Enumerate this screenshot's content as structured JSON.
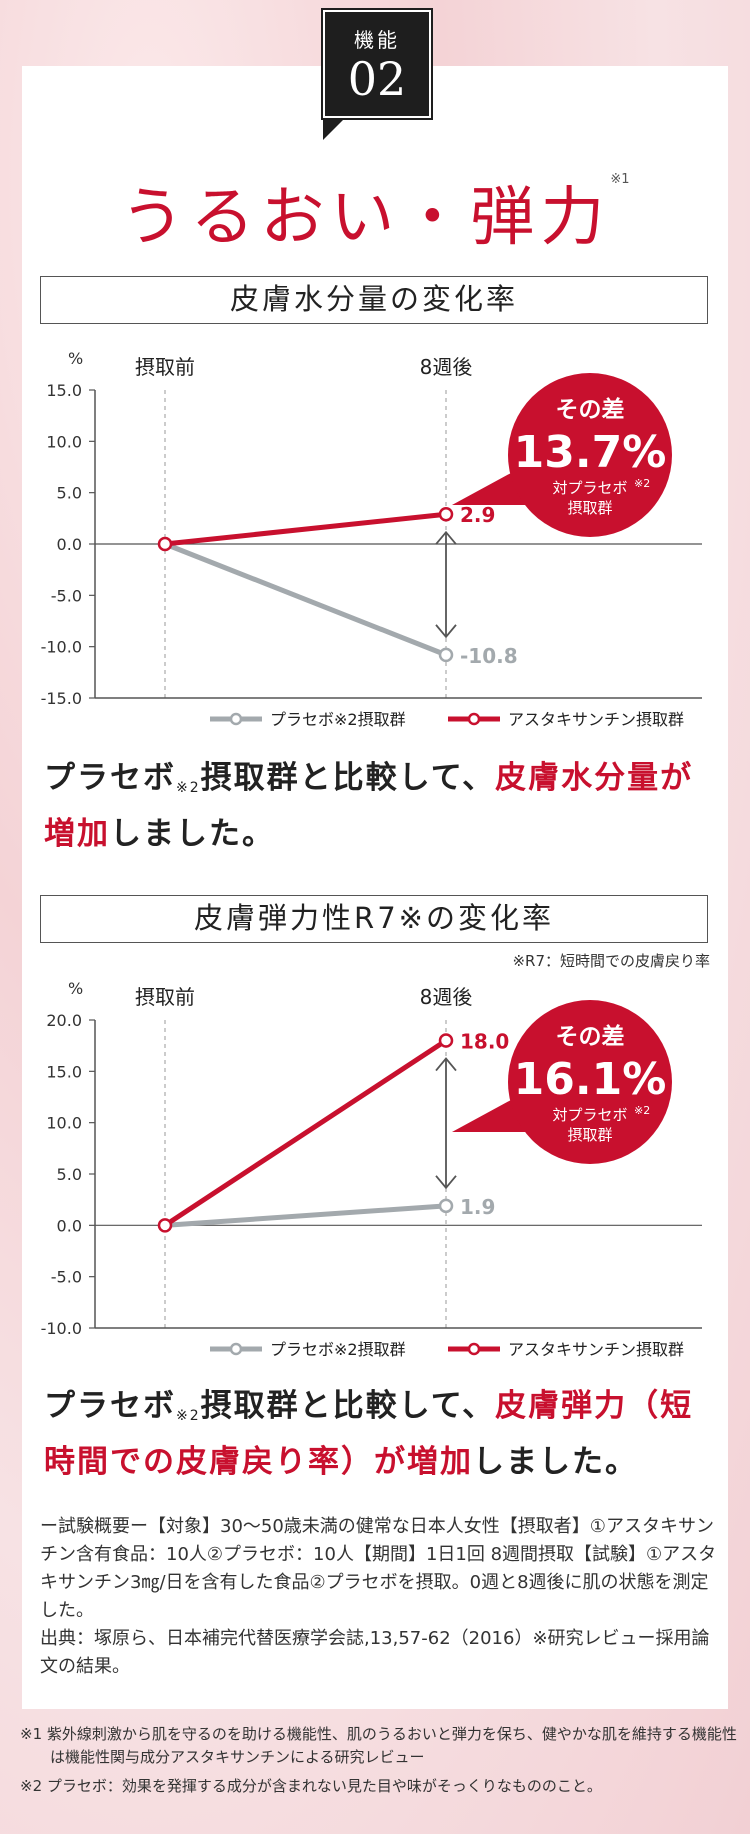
{
  "badge": {
    "label": "機能",
    "number": "02"
  },
  "title": {
    "text": "うるおい・弾力",
    "note": "※1"
  },
  "chart_data": [
    {
      "type": "line",
      "title": "皮膚水分量の変化率",
      "ylabel": "%",
      "categories": [
        "摂取前",
        "8週後"
      ],
      "yticks": [
        "15.0",
        "10.0",
        "5.0",
        "0.0",
        "-5.0",
        "-10.0",
        "-15.0"
      ],
      "ylim": [
        -15,
        15
      ],
      "series": [
        {
          "name": "プラセボ※2摂取群",
          "values": [
            0,
            -10.8
          ],
          "color": "#a3a9ad",
          "end_label": "-10.8"
        },
        {
          "name": "アスタキサンチン摂取群",
          "values": [
            0,
            2.9
          ],
          "color": "#c8102e",
          "end_label": "2.9"
        }
      ],
      "annotation": {
        "top": "その差",
        "value": "13.7%",
        "sub1": "対プラセボ",
        "sub_note": "※2",
        "sub2": "摂取群"
      }
    },
    {
      "type": "line",
      "title": "皮膚弾力性R7※の変化率",
      "ylabel": "%",
      "categories": [
        "摂取前",
        "8週後"
      ],
      "yticks": [
        "20.0",
        "15.0",
        "10.0",
        "5.0",
        "0.0",
        "-5.0",
        "-10.0"
      ],
      "ylim": [
        -10,
        20
      ],
      "series": [
        {
          "name": "プラセボ※2摂取群",
          "values": [
            0,
            1.9
          ],
          "color": "#a3a9ad",
          "end_label": "1.9"
        },
        {
          "name": "アスタキサンチン摂取群",
          "values": [
            0,
            18.0
          ],
          "color": "#c8102e",
          "end_label": "18.0"
        }
      ],
      "annotation": {
        "top": "その差",
        "value": "16.1%",
        "sub1": "対プラセボ",
        "sub_note": "※2",
        "sub2": "摂取群"
      }
    }
  ],
  "section1": {
    "heading": "皮膚水分量の変化率",
    "lead_pre": "プラセボ",
    "lead_note": "※2",
    "lead_mid": "摂取群と比較して、",
    "lead_hl": "皮膚水分量が増加",
    "lead_post": "しました。"
  },
  "section2": {
    "heading": "皮膚弾力性R7※の変化率",
    "r7_note": "※R7：短時間での皮膚戻り率",
    "lead_pre": "プラセボ",
    "lead_note": "※2",
    "lead_mid": "摂取群と比較して、",
    "lead_hl": "皮膚弾力（短時間での皮膚戻り率）が増加",
    "lead_post": "しました。"
  },
  "summary": {
    "line1": "ー試験概要ー【対象】30〜50歳未満の健常な日本人女性【摂取者】①アスタキサンチン含有食品：10人②プラセボ：10人【期間】1日1回 8週間摂取【試験】①アスタキサンチン3㎎/日を含有した食品②プラセボを摂取。0週と8週後に肌の状態を測定した。",
    "line2": "出典：塚原ら、日本補完代替医療学会誌,13,57-62（2016）※研究レビュー採用論文の結果。"
  },
  "footnotes": {
    "fn1": "※1 紫外線刺激から肌を守るのを助ける機能性、肌のうるおいと弾力を保ち、健やかな肌を維持する機能性は機能性関与成分アスタキサンチンによる研究レビュー",
    "fn2": "※2 プラセボ：効果を発揮する成分が含まれない見た目や味がそっくりなもののこと。"
  }
}
